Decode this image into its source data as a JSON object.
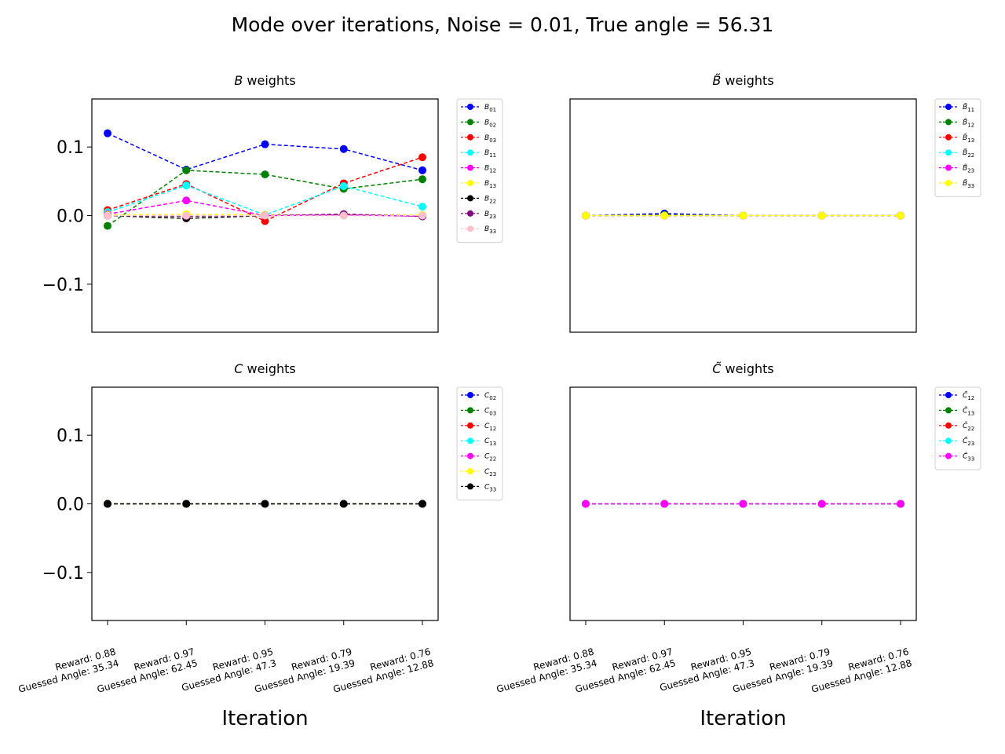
{
  "figure": {
    "title": "Mode over iterations, Noise = 0.01, True angle = 56.31"
  },
  "chart_data": [
    {
      "type": "line",
      "title_symbol": "B",
      "title_tilde": false,
      "title_suffix": " weights",
      "xlabel": "",
      "x": [
        0,
        1,
        2,
        3,
        4
      ],
      "ylim": [
        -0.17,
        0.17
      ],
      "yticks": [
        "0.1",
        "0.0",
        "−0.1"
      ],
      "yticks_visible": true,
      "xticks_visible": false,
      "series": [
        {
          "name": "B",
          "sub": "01",
          "tilde": false,
          "color": "#0000ff",
          "values": [
            0.12,
            0.067,
            0.104,
            0.097,
            0.066
          ]
        },
        {
          "name": "B",
          "sub": "02",
          "tilde": false,
          "color": "#008000",
          "values": [
            -0.015,
            0.066,
            0.06,
            0.039,
            0.053
          ]
        },
        {
          "name": "B",
          "sub": "03",
          "tilde": false,
          "color": "#ff0000",
          "values": [
            0.008,
            0.046,
            -0.008,
            0.047,
            0.085
          ]
        },
        {
          "name": "B",
          "sub": "11",
          "tilde": false,
          "color": "#00ffff",
          "values": [
            0.005,
            0.044,
            0.001,
            0.043,
            0.013
          ]
        },
        {
          "name": "B",
          "sub": "12",
          "tilde": false,
          "color": "#ff00ff",
          "values": [
            0.002,
            0.022,
            0.0,
            0.001,
            -0.001
          ]
        },
        {
          "name": "B",
          "sub": "13",
          "tilde": false,
          "color": "#ffff00",
          "values": [
            0.001,
            0.002,
            0.001,
            0.001,
            0.001
          ]
        },
        {
          "name": "B",
          "sub": "22",
          "tilde": false,
          "color": "#000000",
          "values": [
            0.0,
            -0.004,
            0.0,
            0.002,
            -0.001
          ]
        },
        {
          "name": "B",
          "sub": "23",
          "tilde": false,
          "color": "#800080",
          "values": [
            0.0,
            -0.001,
            0.0,
            0.002,
            -0.001
          ]
        },
        {
          "name": "B",
          "sub": "33",
          "tilde": false,
          "color": "#ffc0cb",
          "values": [
            0.0,
            0.0,
            0.0,
            0.0,
            0.0
          ]
        }
      ]
    },
    {
      "type": "line",
      "title_symbol": "B",
      "title_tilde": true,
      "title_suffix": " weights",
      "xlabel": "",
      "x": [
        0,
        1,
        2,
        3,
        4
      ],
      "ylim": [
        -0.17,
        0.17
      ],
      "yticks": [],
      "yticks_visible": false,
      "xticks_visible": false,
      "series": [
        {
          "name": "B",
          "sub": "11",
          "tilde": true,
          "color": "#0000ff",
          "values": [
            0.0,
            0.003,
            0.0,
            0.0,
            0.0
          ]
        },
        {
          "name": "B",
          "sub": "12",
          "tilde": true,
          "color": "#008000",
          "values": [
            0.0,
            0.001,
            0.0,
            0.0,
            0.0
          ]
        },
        {
          "name": "B",
          "sub": "13",
          "tilde": true,
          "color": "#ff0000",
          "values": [
            0.0,
            0.0,
            0.0,
            0.0,
            0.0
          ]
        },
        {
          "name": "B",
          "sub": "22",
          "tilde": true,
          "color": "#00ffff",
          "values": [
            0.0,
            0.0,
            0.0,
            0.0,
            0.0
          ]
        },
        {
          "name": "B",
          "sub": "23",
          "tilde": true,
          "color": "#ff00ff",
          "values": [
            0.0,
            0.0,
            0.0,
            0.0,
            0.0
          ]
        },
        {
          "name": "B",
          "sub": "33",
          "tilde": true,
          "color": "#ffff00",
          "values": [
            0.0,
            0.0,
            0.0,
            0.0,
            0.0
          ]
        }
      ]
    },
    {
      "type": "line",
      "title_symbol": "C",
      "title_tilde": false,
      "title_suffix": " weights",
      "xlabel": "Iteration",
      "x": [
        0,
        1,
        2,
        3,
        4
      ],
      "ylim": [
        -0.17,
        0.17
      ],
      "yticks": [
        "0.1",
        "0.0",
        "−0.1"
      ],
      "yticks_visible": true,
      "xticks_visible": true,
      "series": [
        {
          "name": "C",
          "sub": "02",
          "tilde": false,
          "color": "#0000ff",
          "values": [
            0,
            0,
            0,
            0,
            0
          ]
        },
        {
          "name": "C",
          "sub": "03",
          "tilde": false,
          "color": "#008000",
          "values": [
            0,
            0,
            0,
            0,
            0
          ]
        },
        {
          "name": "C",
          "sub": "12",
          "tilde": false,
          "color": "#ff0000",
          "values": [
            0,
            0,
            0,
            0,
            0
          ]
        },
        {
          "name": "C",
          "sub": "13",
          "tilde": false,
          "color": "#00ffff",
          "values": [
            0,
            0,
            0,
            0,
            0
          ]
        },
        {
          "name": "C",
          "sub": "22",
          "tilde": false,
          "color": "#ff00ff",
          "values": [
            0,
            0,
            0,
            0,
            0
          ]
        },
        {
          "name": "C",
          "sub": "23",
          "tilde": false,
          "color": "#ffff00",
          "values": [
            0,
            0,
            0,
            0,
            0
          ]
        },
        {
          "name": "C",
          "sub": "33",
          "tilde": false,
          "color": "#000000",
          "values": [
            0,
            0,
            0,
            0,
            0
          ]
        }
      ]
    },
    {
      "type": "line",
      "title_symbol": "C",
      "title_tilde": true,
      "title_suffix": " weights",
      "xlabel": "Iteration",
      "x": [
        0,
        1,
        2,
        3,
        4
      ],
      "ylim": [
        -0.17,
        0.17
      ],
      "yticks": [],
      "yticks_visible": false,
      "xticks_visible": true,
      "series": [
        {
          "name": "C",
          "sub": "12",
          "tilde": true,
          "color": "#0000ff",
          "values": [
            0,
            0,
            0,
            0,
            0
          ]
        },
        {
          "name": "C",
          "sub": "13",
          "tilde": true,
          "color": "#008000",
          "values": [
            0,
            0,
            0,
            0,
            0
          ]
        },
        {
          "name": "C",
          "sub": "22",
          "tilde": true,
          "color": "#ff0000",
          "values": [
            0,
            0,
            0,
            0,
            0
          ]
        },
        {
          "name": "C",
          "sub": "23",
          "tilde": true,
          "color": "#00ffff",
          "values": [
            0,
            0,
            0,
            0,
            0
          ]
        },
        {
          "name": "C",
          "sub": "33",
          "tilde": true,
          "color": "#ff00ff",
          "values": [
            0,
            0,
            0,
            0,
            0
          ]
        }
      ]
    }
  ],
  "iteration_labels": [
    {
      "reward": "Reward: 0.88",
      "angle": "Guessed Angle: 35.34"
    },
    {
      "reward": "Reward: 0.97",
      "angle": "Guessed Angle: 62.45"
    },
    {
      "reward": "Reward: 0.95",
      "angle": "Guessed Angle: 47.3"
    },
    {
      "reward": "Reward: 0.79",
      "angle": "Guessed Angle: 19.39"
    },
    {
      "reward": "Reward: 0.76",
      "angle": "Guessed Angle: 12.88"
    }
  ]
}
